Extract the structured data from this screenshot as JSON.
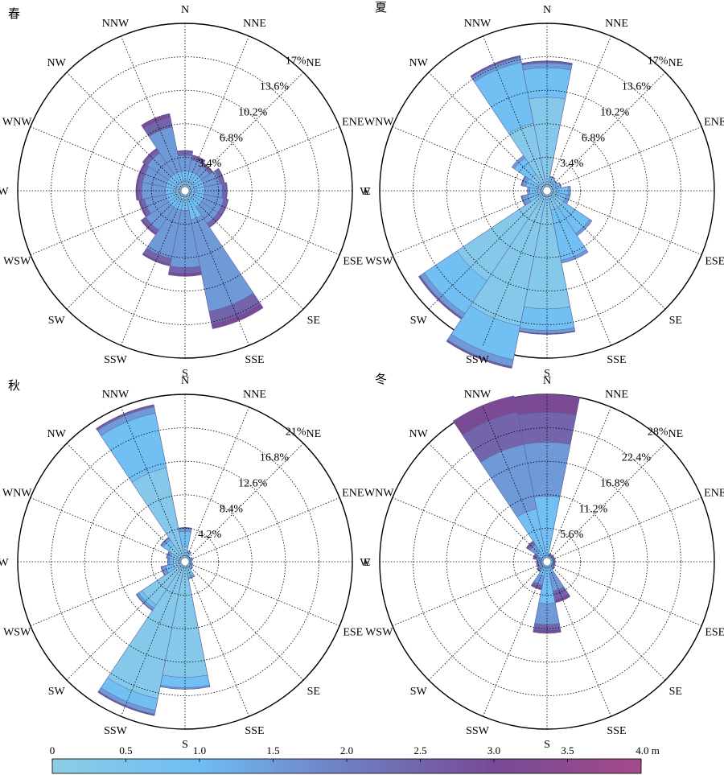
{
  "directions": [
    "N",
    "NNE",
    "NE",
    "ENE",
    "E",
    "ESE",
    "SE",
    "SSE",
    "S",
    "SSW",
    "SW",
    "WSW",
    "W",
    "WNW",
    "NW",
    "NNW"
  ],
  "colorbar": {
    "ticks": [
      "0",
      "0.5",
      "1.0",
      "1.5",
      "2.0",
      "2.5",
      "3.0",
      "3.5",
      "4.0 m"
    ],
    "stops": [
      {
        "v": 0.0,
        "color": "#8ccce6"
      },
      {
        "v": 1.0,
        "color": "#6fbdf4"
      },
      {
        "v": 2.0,
        "color": "#6f7ec0"
      },
      {
        "v": 3.0,
        "color": "#764a96"
      },
      {
        "v": 4.0,
        "color": "#a34a8a"
      }
    ]
  },
  "chart_data": [
    {
      "type": "windrose",
      "title": "春",
      "rings": [
        3.4,
        6.8,
        10.2,
        13.6,
        17
      ],
      "ring_labels": [
        "3.4%",
        "6.8%",
        "10.2%",
        "13.6%",
        "17%"
      ],
      "max": 17,
      "bins": [
        0.5,
        1.0,
        1.5,
        2.0,
        2.5
      ],
      "petals": [
        [
          1,
          2,
          3.6,
          4.0,
          4.1
        ],
        [
          1,
          2,
          3.2,
          3.6,
          3.7
        ],
        [
          1,
          2,
          3.0,
          3.3,
          3.4
        ],
        [
          1,
          2,
          3.6,
          4.0,
          4.1
        ],
        [
          1,
          2,
          3.8,
          4.2,
          4.3
        ],
        [
          1,
          2,
          4.0,
          4.4,
          4.5
        ],
        [
          1,
          2,
          4.0,
          4.4,
          4.5
        ],
        [
          1,
          3,
          12.5,
          13.8,
          14.3
        ],
        [
          1,
          2,
          7.8,
          8.4,
          8.7
        ],
        [
          1,
          2,
          7.0,
          7.6,
          7.8
        ],
        [
          1,
          2,
          4.8,
          5.2,
          5.4
        ],
        [
          1,
          2,
          4.2,
          4.6,
          4.8
        ],
        [
          1,
          2,
          4.4,
          4.8,
          5.0
        ],
        [
          1,
          2,
          4.4,
          4.8,
          5.0
        ],
        [
          1,
          2,
          4.6,
          5.0,
          5.2
        ],
        [
          1,
          2,
          6.6,
          7.6,
          8.0
        ]
      ]
    },
    {
      "type": "windrose",
      "title": "夏",
      "rings": [
        3.4,
        6.8,
        10.2,
        13.6,
        17
      ],
      "ring_labels": [
        "3.4%",
        "6.8%",
        "10.2%",
        "13.6%",
        "17%"
      ],
      "max": 17,
      "bins": [
        0.5,
        1.0,
        1.5,
        2.0,
        2.5
      ],
      "petals": [
        [
          9.5,
          12.5,
          13.0,
          13.1,
          13.2
        ],
        [
          1,
          1.4,
          1.5,
          1.5,
          1.5
        ],
        [
          0.8,
          1.2,
          1.3,
          1.3,
          1.3
        ],
        [
          1,
          1.4,
          1.5,
          1.5,
          1.5
        ],
        [
          1,
          2.2,
          2.4,
          2.4,
          2.4
        ],
        [
          1,
          2,
          2.4,
          2.4,
          2.4
        ],
        [
          2,
          5.2,
          5.5,
          5.5,
          5.5
        ],
        [
          2,
          7.2,
          7.5,
          7.5,
          7.5
        ],
        [
          12,
          14.2,
          14.5,
          14.5,
          14.6
        ],
        [
          14,
          17.5,
          18.2,
          18.3,
          18.4
        ],
        [
          11,
          15.0,
          15.5,
          15.6,
          15.7
        ],
        [
          1,
          2,
          2.6,
          2.7,
          2.7
        ],
        [
          1,
          1.8,
          2.0,
          2.0,
          2.0
        ],
        [
          1,
          2.2,
          2.6,
          2.6,
          2.7
        ],
        [
          2,
          4.0,
          4.3,
          4.3,
          4.3
        ],
        [
          7,
          13.3,
          13.8,
          13.9,
          14.0
        ]
      ]
    },
    {
      "type": "windrose",
      "title": "秋",
      "rings": [
        4.2,
        8.4,
        12.6,
        16.8,
        21
      ],
      "ring_labels": [
        "4.2%",
        "8.4%",
        "12.6%",
        "16.8%",
        "21%"
      ],
      "max": 21,
      "bins": [
        0.5,
        1.0,
        1.5,
        2.0,
        2.5
      ],
      "petals": [
        [
          2,
          3.8,
          4.2,
          4.3,
          4.3
        ],
        [
          0.8,
          1.2,
          1.4,
          1.4,
          1.4
        ],
        [
          0.5,
          0.7,
          0.8,
          0.8,
          0.8
        ],
        [
          0.6,
          0.9,
          1.0,
          1.0,
          1.0
        ],
        [
          0.5,
          0.7,
          0.8,
          0.8,
          0.8
        ],
        [
          0.6,
          0.9,
          1.0,
          1.0,
          1.0
        ],
        [
          0.8,
          1.1,
          1.2,
          1.2,
          1.2
        ],
        [
          1.5,
          2.0,
          2.2,
          2.2,
          2.2
        ],
        [
          14.5,
          15.8,
          16.0,
          16.0,
          16.0
        ],
        [
          17.5,
          19.0,
          19.5,
          19.6,
          19.7
        ],
        [
          6.5,
          7.0,
          7.3,
          7.4,
          7.4
        ],
        [
          1.5,
          2.5,
          3.0,
          3.1,
          3.1
        ],
        [
          1.5,
          2.0,
          2.2,
          2.2,
          2.2
        ],
        [
          1.5,
          2.0,
          2.3,
          2.4,
          2.4
        ],
        [
          2.5,
          3.3,
          3.6,
          3.7,
          3.7
        ],
        [
          12.0,
          19.0,
          19.8,
          20.0,
          20.1
        ]
      ]
    },
    {
      "type": "windrose",
      "title": "冬",
      "rings": [
        5.6,
        11.2,
        16.8,
        22.4,
        28
      ],
      "ring_labels": [
        "5.6%",
        "11.2%",
        "16.8%",
        "22.4%",
        "28%"
      ],
      "max": 28,
      "bins": [
        0.5,
        1.0,
        1.5,
        2.0,
        2.5
      ],
      "petals": [
        [
          0.5,
          11.0,
          20.0,
          25.0,
          28.0
        ],
        [
          0.5,
          1.0,
          1.2,
          1.3,
          1.4
        ],
        [
          0.5,
          1.0,
          1.2,
          1.3,
          1.4
        ],
        [
          0.5,
          1.0,
          1.2,
          1.3,
          1.4
        ],
        [
          0.5,
          1.0,
          1.2,
          1.3,
          1.4
        ],
        [
          0.5,
          1.0,
          1.2,
          1.3,
          1.4
        ],
        [
          0.5,
          1.0,
          1.4,
          1.5,
          1.6
        ],
        [
          0.5,
          2.0,
          5.0,
          6.5,
          7.0
        ],
        [
          0.5,
          7.0,
          10.5,
          11.5,
          12.0
        ],
        [
          0.5,
          2.5,
          4.0,
          4.5,
          4.8
        ],
        [
          0.5,
          1.0,
          1.8,
          2.0,
          2.1
        ],
        [
          0.5,
          1.0,
          1.5,
          1.7,
          1.8
        ],
        [
          0.5,
          1.0,
          1.5,
          1.7,
          1.8
        ],
        [
          0.5,
          1.0,
          1.8,
          2.2,
          2.4
        ],
        [
          0.5,
          2.0,
          3.5,
          4.0,
          4.2
        ],
        [
          0.5,
          9.0,
          20.0,
          25.5,
          28.3
        ]
      ]
    }
  ]
}
